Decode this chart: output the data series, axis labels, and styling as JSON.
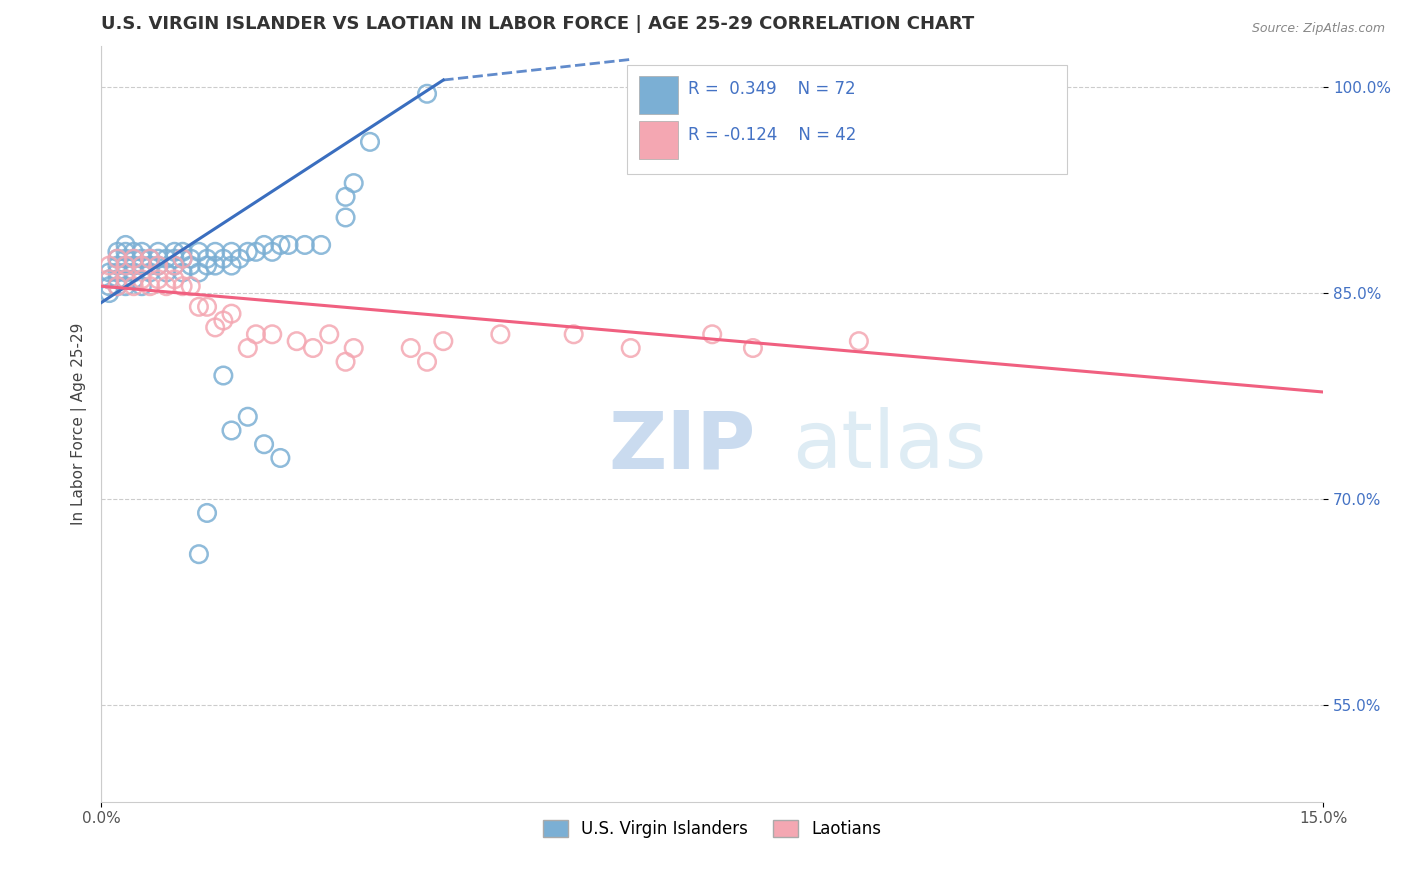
{
  "title": "U.S. VIRGIN ISLANDER VS LAOTIAN IN LABOR FORCE | AGE 25-29 CORRELATION CHART",
  "source": "Source: ZipAtlas.com",
  "ylabel": "In Labor Force | Age 25-29",
  "x_min": 0.0,
  "x_max": 0.15,
  "y_min": 0.48,
  "y_max": 1.03,
  "x_ticks": [
    0.0,
    0.15
  ],
  "x_tick_labels": [
    "0.0%",
    "15.0%"
  ],
  "y_ticks": [
    0.55,
    0.7,
    0.85,
    1.0
  ],
  "y_tick_labels": [
    "55.0%",
    "70.0%",
    "85.0%",
    "100.0%"
  ],
  "blue_R": 0.349,
  "blue_N": 72,
  "pink_R": -0.124,
  "pink_N": 42,
  "blue_color": "#7BAFD4",
  "pink_color": "#F4A7B2",
  "blue_line_color": "#3A6EBF",
  "pink_line_color": "#F06080",
  "legend_label_blue": "U.S. Virgin Islanders",
  "legend_label_pink": "Laotians",
  "blue_line_x": [
    0.0,
    0.042
  ],
  "blue_line_y": [
    0.843,
    1.005
  ],
  "pink_line_x": [
    0.0,
    0.15
  ],
  "pink_line_y": [
    0.855,
    0.778
  ],
  "blue_scatter_x": [
    0.001,
    0.001,
    0.001,
    0.001,
    0.002,
    0.002,
    0.002,
    0.002,
    0.002,
    0.002,
    0.003,
    0.003,
    0.003,
    0.003,
    0.003,
    0.003,
    0.003,
    0.004,
    0.004,
    0.004,
    0.004,
    0.004,
    0.005,
    0.005,
    0.005,
    0.005,
    0.006,
    0.006,
    0.006,
    0.007,
    0.007,
    0.007,
    0.008,
    0.008,
    0.009,
    0.009,
    0.009,
    0.01,
    0.01,
    0.01,
    0.011,
    0.011,
    0.012,
    0.012,
    0.013,
    0.013,
    0.014,
    0.014,
    0.015,
    0.016,
    0.016,
    0.017,
    0.018,
    0.019,
    0.02,
    0.021,
    0.022,
    0.023,
    0.025,
    0.027,
    0.03,
    0.03,
    0.031,
    0.033,
    0.04,
    0.015,
    0.016,
    0.018,
    0.02,
    0.022,
    0.012,
    0.013
  ],
  "blue_scatter_y": [
    0.85,
    0.855,
    0.86,
    0.865,
    0.855,
    0.86,
    0.865,
    0.87,
    0.875,
    0.88,
    0.855,
    0.86,
    0.865,
    0.87,
    0.875,
    0.88,
    0.885,
    0.86,
    0.865,
    0.87,
    0.875,
    0.88,
    0.855,
    0.87,
    0.875,
    0.88,
    0.865,
    0.87,
    0.875,
    0.87,
    0.875,
    0.88,
    0.865,
    0.875,
    0.87,
    0.875,
    0.88,
    0.865,
    0.875,
    0.88,
    0.87,
    0.875,
    0.865,
    0.88,
    0.87,
    0.875,
    0.87,
    0.88,
    0.875,
    0.87,
    0.88,
    0.875,
    0.88,
    0.88,
    0.885,
    0.88,
    0.885,
    0.885,
    0.885,
    0.885,
    0.905,
    0.92,
    0.93,
    0.96,
    0.995,
    0.79,
    0.75,
    0.76,
    0.74,
    0.73,
    0.66,
    0.69
  ],
  "pink_scatter_x": [
    0.001,
    0.001,
    0.002,
    0.002,
    0.003,
    0.003,
    0.004,
    0.004,
    0.005,
    0.005,
    0.006,
    0.006,
    0.007,
    0.007,
    0.008,
    0.009,
    0.009,
    0.01,
    0.01,
    0.011,
    0.012,
    0.013,
    0.014,
    0.015,
    0.016,
    0.018,
    0.019,
    0.021,
    0.024,
    0.026,
    0.028,
    0.03,
    0.031,
    0.038,
    0.04,
    0.042,
    0.049,
    0.058,
    0.065,
    0.075,
    0.08,
    0.093
  ],
  "pink_scatter_y": [
    0.86,
    0.87,
    0.855,
    0.875,
    0.86,
    0.87,
    0.855,
    0.875,
    0.86,
    0.87,
    0.855,
    0.875,
    0.86,
    0.87,
    0.855,
    0.86,
    0.87,
    0.855,
    0.875,
    0.855,
    0.84,
    0.84,
    0.825,
    0.83,
    0.835,
    0.81,
    0.82,
    0.82,
    0.815,
    0.81,
    0.82,
    0.8,
    0.81,
    0.81,
    0.8,
    0.815,
    0.82,
    0.82,
    0.81,
    0.82,
    0.81,
    0.815
  ]
}
